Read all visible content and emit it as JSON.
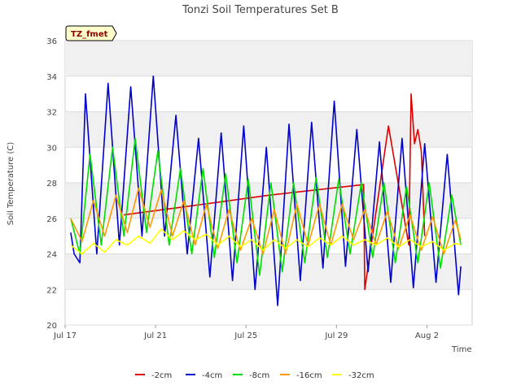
{
  "chart_data": {
    "type": "line",
    "title": "Tonzi Soil Temperatures Set B",
    "xlabel": "Time",
    "ylabel": "Soil Temperature (C)",
    "ylim": [
      20,
      36
    ],
    "yticks": [
      20,
      22,
      24,
      26,
      28,
      30,
      32,
      34,
      36
    ],
    "xlim_days": [
      "Jul 17",
      "Aug 4"
    ],
    "xticks": [
      "Jul 17",
      "Jul 21",
      "Jul 25",
      "Jul 29",
      "Aug 2"
    ],
    "grid": "horizontal bands",
    "legend_position": "bottom",
    "badge": "TZ_fmet",
    "x_unit": "day of July (Aug 1 = 32)",
    "series": [
      {
        "name": "-2cm",
        "color": "#dd0000",
        "x": [
          19.6,
          22,
          26,
          30.2,
          30.25,
          31.3,
          32.2,
          32.3,
          32.45,
          32.6,
          32.75,
          32.9
        ],
        "values": [
          26.2,
          26.6,
          27.3,
          27.9,
          22.0,
          31.2,
          24.5,
          33.0,
          30.2,
          31.0,
          29.8,
          25.0
        ]
      },
      {
        "name": "-4cm",
        "color": "#0000cc",
        "x": [
          17.25,
          17.4,
          17.65,
          17.9,
          18.4,
          18.9,
          19.4,
          19.9,
          20.4,
          20.9,
          21.4,
          21.9,
          22.4,
          22.9,
          23.4,
          23.9,
          24.4,
          24.9,
          25.4,
          25.9,
          26.4,
          26.9,
          27.4,
          27.9,
          28.4,
          28.9,
          29.4,
          29.9,
          30.4,
          30.9,
          31.4,
          31.9,
          32.4,
          32.9,
          33.4,
          33.9,
          34.4,
          34.5
        ],
        "values": [
          25.2,
          24.0,
          23.5,
          33.0,
          24.0,
          33.6,
          24.5,
          33.4,
          25.0,
          34.0,
          25.0,
          31.8,
          24.0,
          30.5,
          22.7,
          30.8,
          22.5,
          31.2,
          22.0,
          30.0,
          21.1,
          31.3,
          22.5,
          31.4,
          23.2,
          32.6,
          23.3,
          31.0,
          23.0,
          30.3,
          22.4,
          30.5,
          22.1,
          30.2,
          22.4,
          29.6,
          21.7,
          23.3
        ]
      },
      {
        "name": "-8cm",
        "color": "#00dd00",
        "x": [
          17.25,
          17.65,
          18.1,
          18.6,
          19.1,
          19.6,
          20.1,
          20.6,
          21.1,
          21.6,
          22.1,
          22.6,
          23.1,
          23.6,
          24.1,
          24.6,
          25.1,
          25.6,
          26.1,
          26.6,
          27.1,
          27.6,
          28.1,
          28.6,
          29.1,
          29.6,
          30.1,
          30.6,
          31.1,
          31.6,
          32.1,
          32.6,
          33.1,
          33.6,
          34.1,
          34.5
        ],
        "values": [
          26.0,
          24.0,
          29.6,
          24.5,
          30.0,
          25.0,
          30.5,
          25.2,
          29.8,
          24.5,
          28.8,
          24.0,
          28.8,
          23.8,
          28.5,
          23.5,
          28.2,
          22.8,
          28.0,
          23.0,
          28.0,
          23.5,
          28.3,
          23.8,
          28.2,
          24.0,
          28.0,
          23.8,
          28.0,
          23.5,
          27.8,
          23.5,
          28.0,
          23.2,
          27.3,
          24.5
        ]
      },
      {
        "name": "-16cm",
        "color": "#ff9900",
        "x": [
          17.25,
          17.75,
          18.25,
          18.75,
          19.25,
          19.75,
          20.25,
          20.75,
          21.25,
          21.75,
          22.25,
          22.75,
          23.25,
          23.75,
          24.25,
          24.75,
          25.25,
          25.75,
          26.25,
          26.75,
          27.25,
          27.75,
          28.25,
          28.75,
          29.25,
          29.75,
          30.25,
          30.75,
          31.25,
          31.75,
          32.25,
          32.75,
          33.25,
          33.75,
          34.25,
          34.5
        ],
        "values": [
          26.0,
          24.7,
          27.0,
          25.0,
          27.3,
          25.2,
          27.7,
          25.5,
          27.6,
          25.0,
          27.0,
          24.5,
          26.8,
          24.3,
          26.5,
          24.2,
          26.0,
          24.0,
          26.5,
          24.0,
          26.8,
          24.5,
          26.8,
          24.5,
          26.8,
          24.8,
          26.5,
          24.5,
          26.4,
          24.3,
          26.2,
          24.2,
          26.1,
          24.0,
          25.9,
          24.8
        ]
      },
      {
        "name": "-32cm",
        "color": "#ffff00",
        "x": [
          17.25,
          17.75,
          18.25,
          18.75,
          19.25,
          19.75,
          20.25,
          20.75,
          21.25,
          21.75,
          22.25,
          22.75,
          23.25,
          23.75,
          24.25,
          24.75,
          25.25,
          25.75,
          26.25,
          26.75,
          27.25,
          27.75,
          28.25,
          28.75,
          29.25,
          29.75,
          30.25,
          30.75,
          31.25,
          31.75,
          32.25,
          32.75,
          33.25,
          33.75,
          34.25,
          34.5
        ],
        "values": [
          24.5,
          24.0,
          24.6,
          24.1,
          24.8,
          24.5,
          25.0,
          24.6,
          25.4,
          24.8,
          25.3,
          24.8,
          25.1,
          24.5,
          25.0,
          24.4,
          24.8,
          24.2,
          24.8,
          24.3,
          24.8,
          24.4,
          24.9,
          24.5,
          25.0,
          24.5,
          24.8,
          24.5,
          24.9,
          24.4,
          24.8,
          24.4,
          24.7,
          24.2,
          24.6,
          24.5
        ]
      }
    ]
  }
}
